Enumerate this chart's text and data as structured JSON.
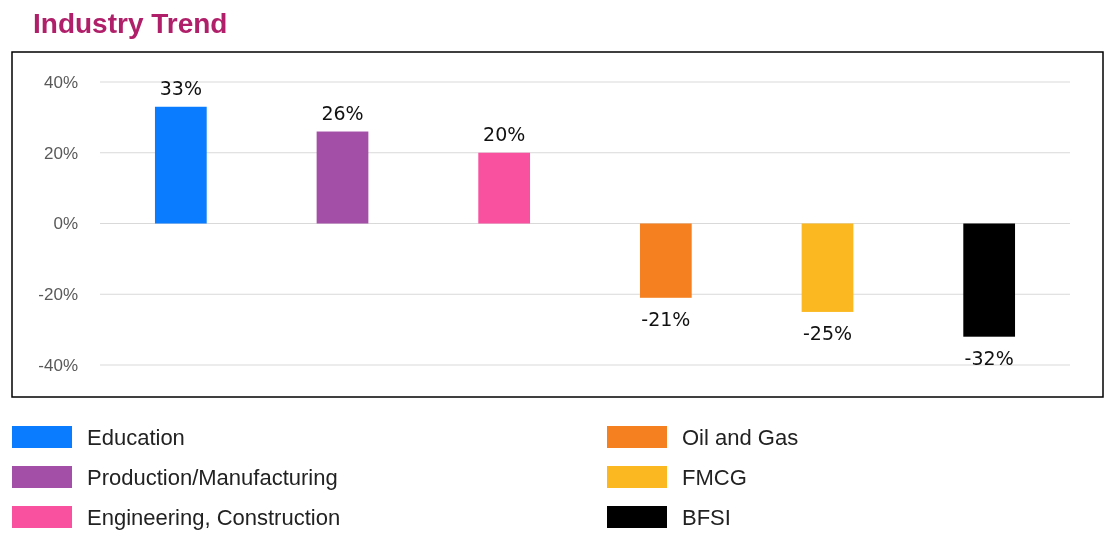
{
  "chart_data": {
    "type": "bar",
    "title": "Industry Trend",
    "categories": [
      null
    ],
    "series": [
      {
        "name": "Education",
        "color": "#0a7cff",
        "values": [
          33
        ],
        "value_labels": [
          "33%"
        ]
      },
      {
        "name": "Production/Manufacturing",
        "color": "#a34fa8",
        "values": [
          26
        ],
        "value_labels": [
          "26%"
        ]
      },
      {
        "name": "Engineering, Construction",
        "color": "#fa50a0",
        "values": [
          20
        ],
        "value_labels": [
          "20%"
        ]
      },
      {
        "name": "Oil and Gas",
        "color": "#f5801f",
        "values": [
          -21
        ],
        "value_labels": [
          "-21%"
        ]
      },
      {
        "name": "FMCG",
        "color": "#fbb820",
        "values": [
          -25
        ],
        "value_labels": [
          "-25%"
        ]
      },
      {
        "name": "BFSI",
        "color": "#000000",
        "values": [
          -32
        ],
        "value_labels": [
          "-32%"
        ]
      }
    ],
    "ylim": [
      -40,
      40
    ],
    "yticks": [
      {
        "value": -40,
        "label": "-40%"
      },
      {
        "value": -20,
        "label": "-20%"
      },
      {
        "value": 0,
        "label": "0%"
      },
      {
        "value": 20,
        "label": "20%"
      },
      {
        "value": 40,
        "label": "40%"
      }
    ],
    "grid": "y",
    "legend": "bottom",
    "tick_labels": "y"
  }
}
